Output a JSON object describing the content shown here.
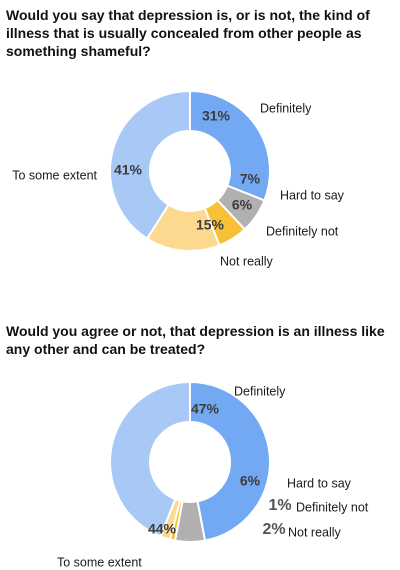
{
  "chart_data": [
    {
      "type": "pie",
      "title": "Would you say that depression is, or is not, the kind of illness that is usually concealed from other people as something shameful?",
      "categories": [
        "Definitely",
        "Hard to say",
        "Definitely not",
        "Not really",
        "To some extent"
      ],
      "values": [
        31,
        7,
        6,
        15,
        41
      ],
      "value_labels": [
        "31%",
        "7%",
        "6%",
        "15%",
        "41%"
      ],
      "colors": [
        "#72a9f2",
        "#b0b0b0",
        "#f7c137",
        "#fcd98e",
        "#a8c9f6"
      ],
      "hole": 0.5,
      "legend": "labels next to slices"
    },
    {
      "type": "pie",
      "title": "Would you agree or not, that depression is an illness like any other and can be treated?",
      "categories": [
        "Definitely",
        "Hard to say",
        "Definitely not",
        "Not really",
        "To some extent"
      ],
      "values": [
        47,
        6,
        1,
        2,
        44
      ],
      "value_labels": [
        "47%",
        "6%",
        "1%",
        "2%",
        "44%"
      ],
      "colors": [
        "#72a9f2",
        "#b0b0b0",
        "#f7c137",
        "#fcd98e",
        "#a8c9f6"
      ],
      "hole": 0.5,
      "legend": "labels next to slices"
    }
  ]
}
